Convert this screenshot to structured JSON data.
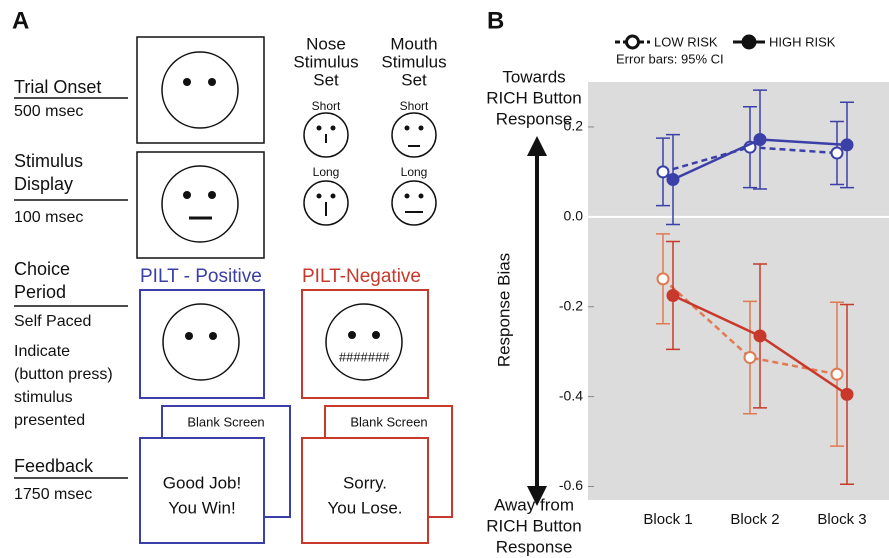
{
  "panel_labels": [
    "A",
    "B"
  ],
  "stages": [
    {
      "title": [
        "Trial Onset"
      ],
      "notes": [
        "500 msec"
      ]
    },
    {
      "title": [
        "Stimulus",
        "Display"
      ],
      "notes": [
        "100 msec"
      ]
    },
    {
      "title": [
        "Choice",
        "Period"
      ],
      "notes": [
        "Self Paced",
        "Indicate",
        "(button press)",
        "stimulus",
        "presented"
      ]
    },
    {
      "title": [
        "Feedback"
      ],
      "notes": [
        "1750 msec"
      ]
    }
  ],
  "stimulus_sets": [
    {
      "title": [
        "Nose",
        "Stimulus",
        "Set"
      ],
      "short": "Short",
      "long": "Long"
    },
    {
      "title": [
        "Mouth",
        "Stimulus",
        "Set"
      ],
      "short": "Short",
      "long": "Long"
    }
  ],
  "conditions": [
    {
      "title": "PILT - Positive",
      "blank": "Blank Screen",
      "feedback": [
        "Good Job!",
        "You Win!"
      ]
    },
    {
      "title": "PILT-Negative",
      "symbol": "#######",
      "blank": "Blank Screen",
      "feedback": [
        "Sorry.",
        "You Lose."
      ]
    }
  ],
  "chart_data": {
    "type": "line",
    "annotation": "Error bars: 95% CI",
    "top_label": [
      "Towards",
      "RICH Button",
      "Response"
    ],
    "bottom_label": [
      "Away from",
      "RICH Button",
      "Response"
    ],
    "y_label": "Response Bias",
    "categories": [
      "Block 1",
      "Block 2",
      "Block 3"
    ],
    "ylim": [
      -0.63,
      0.3
    ],
    "yticks": [
      0.2,
      {
        "value": 0,
        "label": "0.0"
      },
      -0.2,
      -0.4,
      -0.6
    ],
    "series": [
      {
        "name": "LOW RISK",
        "color": "#3b40a8",
        "dashed": true,
        "filled": false,
        "values": [
          0.1,
          0.155,
          0.142
        ],
        "errors": [
          0.075,
          0.09,
          0.07
        ]
      },
      {
        "name": "HIGH RISK",
        "color": "#3b40a8",
        "dashed": false,
        "filled": true,
        "values": [
          0.083,
          0.172,
          0.16
        ],
        "errors": [
          0.1,
          0.11,
          0.095
        ]
      },
      {
        "color": "#e07a52",
        "dashed": true,
        "filled": false,
        "values": [
          -0.138,
          -0.313,
          -0.35
        ],
        "errors": [
          0.1,
          0.125,
          0.16
        ]
      },
      {
        "color": "#c8392b",
        "dashed": false,
        "filled": true,
        "values": [
          -0.175,
          -0.265,
          -0.395
        ],
        "errors": [
          0.12,
          0.16,
          0.2
        ]
      }
    ]
  }
}
